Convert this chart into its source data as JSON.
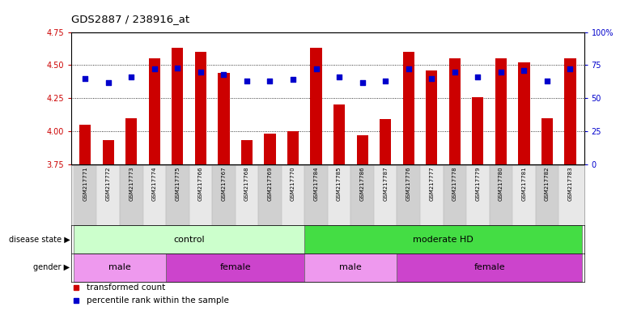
{
  "title": "GDS2887 / 238916_at",
  "samples": [
    "GSM217771",
    "GSM217772",
    "GSM217773",
    "GSM217774",
    "GSM217775",
    "GSM217766",
    "GSM217767",
    "GSM217768",
    "GSM217769",
    "GSM217770",
    "GSM217784",
    "GSM217785",
    "GSM217786",
    "GSM217787",
    "GSM217776",
    "GSM217777",
    "GSM217778",
    "GSM217779",
    "GSM217780",
    "GSM217781",
    "GSM217782",
    "GSM217783"
  ],
  "bar_values": [
    4.05,
    3.93,
    4.1,
    4.55,
    4.63,
    4.6,
    4.44,
    3.93,
    3.98,
    4.0,
    4.63,
    4.2,
    3.97,
    4.09,
    4.6,
    4.46,
    4.55,
    4.26,
    4.55,
    4.52,
    4.1,
    4.55
  ],
  "dot_values": [
    4.4,
    4.37,
    4.41,
    4.47,
    4.48,
    4.45,
    4.43,
    4.38,
    4.38,
    4.39,
    4.47,
    4.41,
    4.37,
    4.38,
    4.47,
    4.4,
    4.45,
    4.41,
    4.45,
    4.46,
    4.38,
    4.47
  ],
  "ylim_left": [
    3.75,
    4.75
  ],
  "ylim_right": [
    0,
    100
  ],
  "yticks_left": [
    3.75,
    4.0,
    4.25,
    4.5,
    4.75
  ],
  "yticks_right": [
    0,
    25,
    50,
    75,
    100
  ],
  "yticks_right_labels": [
    "0",
    "25",
    "50",
    "75",
    "100%"
  ],
  "bar_color": "#cc0000",
  "dot_color": "#0000cc",
  "bar_width": 0.5,
  "disease_groups": [
    {
      "label": "control",
      "start": 0,
      "end": 9,
      "color": "#ccffcc"
    },
    {
      "label": "moderate HD",
      "start": 10,
      "end": 21,
      "color": "#44dd44"
    }
  ],
  "gender_groups": [
    {
      "label": "male",
      "start": 0,
      "end": 3,
      "color": "#ee99ee"
    },
    {
      "label": "female",
      "start": 4,
      "end": 9,
      "color": "#cc44cc"
    },
    {
      "label": "male",
      "start": 10,
      "end": 13,
      "color": "#ee99ee"
    },
    {
      "label": "female",
      "start": 14,
      "end": 21,
      "color": "#cc44cc"
    }
  ],
  "legend": [
    {
      "label": "transformed count",
      "color": "#cc0000"
    },
    {
      "label": "percentile rank within the sample",
      "color": "#0000cc"
    }
  ],
  "left_axis_color": "#cc0000",
  "right_axis_color": "#0000cc",
  "label_col_even": "#d0d0d0",
  "label_col_odd": "#e8e8e8"
}
